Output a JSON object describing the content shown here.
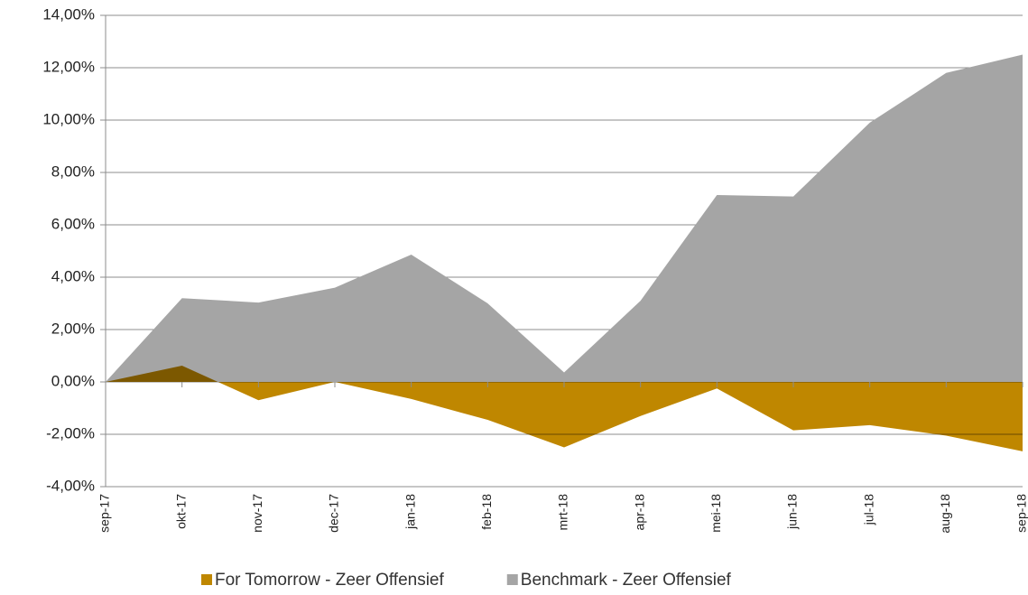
{
  "chart_data": {
    "type": "area",
    "categories": [
      "sep-17",
      "okt-17",
      "nov-17",
      "dec-17",
      "jan-18",
      "feb-18",
      "mrt-18",
      "apr-18",
      "mei-18",
      "jun-18",
      "jul-18",
      "aug-18",
      "sep-18"
    ],
    "series": [
      {
        "name": "For Tomorrow - Zeer Offensief",
        "color": "#bf8700",
        "values": [
          0,
          0.62,
          -0.7,
          0,
          -0.65,
          -1.45,
          -2.5,
          -1.3,
          -0.25,
          -1.85,
          -1.65,
          -2.05,
          -2.65
        ]
      },
      {
        "name": "Benchmark - Zeer Offensief",
        "color": "#a5a5a5",
        "values": [
          0,
          3.2,
          3.03,
          3.6,
          4.86,
          3.0,
          0.36,
          3.1,
          7.14,
          7.08,
          9.9,
          11.8,
          12.5
        ]
      }
    ],
    "ylim": [
      -4,
      14
    ],
    "yticks": [
      {
        "value": -4,
        "label": "-4,00%"
      },
      {
        "value": -2,
        "label": "-2,00%"
      },
      {
        "value": 0,
        "label": "0,00%"
      },
      {
        "value": 2,
        "label": "2,00%"
      },
      {
        "value": 4,
        "label": "4,00%"
      },
      {
        "value": 6,
        "label": "6,00%"
      },
      {
        "value": 8,
        "label": "8,00%"
      },
      {
        "value": 10,
        "label": "10,00%"
      },
      {
        "value": 12,
        "label": "12,00%"
      },
      {
        "value": 14,
        "label": "14,00%"
      }
    ],
    "grid": true,
    "legend": "bottom"
  }
}
